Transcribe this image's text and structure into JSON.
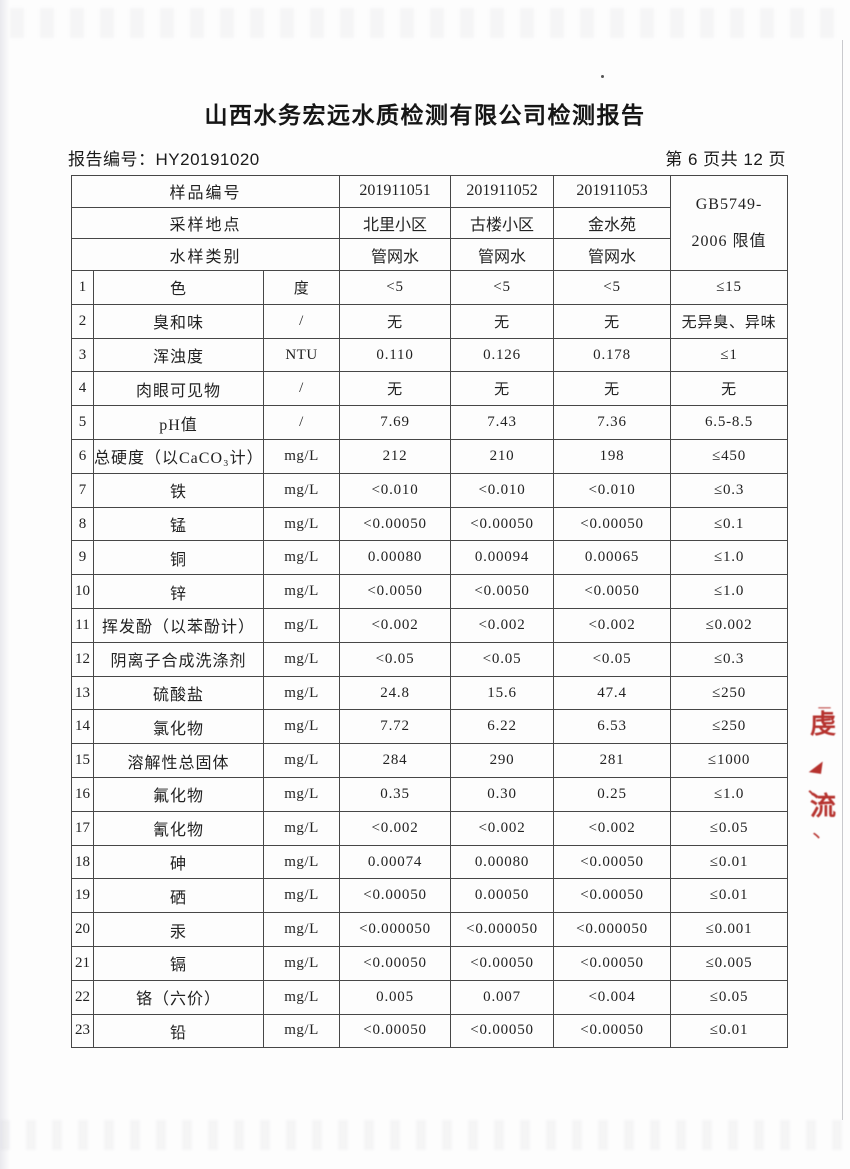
{
  "page": {
    "title": "山西水务宏远水质检测有限公司检测报告",
    "report_no_label": "报告编号：",
    "report_no": "HY20191020",
    "page_info": "第 6 页共 12 页"
  },
  "table": {
    "header": {
      "sample_no_label": "样品编号",
      "location_label": "采样地点",
      "water_type_label": "水样类别",
      "sample_ids": [
        "201911051",
        "201911052",
        "201911053"
      ],
      "locations": [
        "北里小区",
        "古楼小区",
        "金水苑"
      ],
      "water_types": [
        "管网水",
        "管网水",
        "管网水"
      ],
      "limit_line1": "GB5749-",
      "limit_line2": "2006 限值"
    },
    "rows": [
      {
        "no": "1",
        "name": "色",
        "unit": "度",
        "v1": "<5",
        "v2": "<5",
        "v3": "<5",
        "limit": "≤15"
      },
      {
        "no": "2",
        "name": "臭和味",
        "unit": "/",
        "v1": "无",
        "v2": "无",
        "v3": "无",
        "limit": "无异臭、异味"
      },
      {
        "no": "3",
        "name": "浑浊度",
        "unit": "NTU",
        "v1": "0.110",
        "v2": "0.126",
        "v3": "0.178",
        "limit": "≤1"
      },
      {
        "no": "4",
        "name": "肉眼可见物",
        "unit": "/",
        "v1": "无",
        "v2": "无",
        "v3": "无",
        "limit": "无"
      },
      {
        "no": "5",
        "name": "pH值",
        "unit": "/",
        "v1": "7.69",
        "v2": "7.43",
        "v3": "7.36",
        "limit": "6.5-8.5"
      },
      {
        "no": "6",
        "name": "总硬度（以CaCO₃计）",
        "unit": "mg/L",
        "v1": "212",
        "v2": "210",
        "v3": "198",
        "limit": "≤450"
      },
      {
        "no": "7",
        "name": "铁",
        "unit": "mg/L",
        "v1": "<0.010",
        "v2": "<0.010",
        "v3": "<0.010",
        "limit": "≤0.3"
      },
      {
        "no": "8",
        "name": "锰",
        "unit": "mg/L",
        "v1": "<0.00050",
        "v2": "<0.00050",
        "v3": "<0.00050",
        "limit": "≤0.1"
      },
      {
        "no": "9",
        "name": "铜",
        "unit": "mg/L",
        "v1": "0.00080",
        "v2": "0.00094",
        "v3": "0.00065",
        "limit": "≤1.0"
      },
      {
        "no": "10",
        "name": "锌",
        "unit": "mg/L",
        "v1": "<0.0050",
        "v2": "<0.0050",
        "v3": "<0.0050",
        "limit": "≤1.0"
      },
      {
        "no": "11",
        "name": "挥发酚（以苯酚计）",
        "unit": "mg/L",
        "v1": "<0.002",
        "v2": "<0.002",
        "v3": "<0.002",
        "limit": "≤0.002"
      },
      {
        "no": "12",
        "name": "阴离子合成洗涤剂",
        "unit": "mg/L",
        "v1": "<0.05",
        "v2": "<0.05",
        "v3": "<0.05",
        "limit": "≤0.3"
      },
      {
        "no": "13",
        "name": "硫酸盐",
        "unit": "mg/L",
        "v1": "24.8",
        "v2": "15.6",
        "v3": "47.4",
        "limit": "≤250"
      },
      {
        "no": "14",
        "name": "氯化物",
        "unit": "mg/L",
        "v1": "7.72",
        "v2": "6.22",
        "v3": "6.53",
        "limit": "≤250"
      },
      {
        "no": "15",
        "name": "溶解性总固体",
        "unit": "mg/L",
        "v1": "284",
        "v2": "290",
        "v3": "281",
        "limit": "≤1000"
      },
      {
        "no": "16",
        "name": "氟化物",
        "unit": "mg/L",
        "v1": "0.35",
        "v2": "0.30",
        "v3": "0.25",
        "limit": "≤1.0"
      },
      {
        "no": "17",
        "name": "氰化物",
        "unit": "mg/L",
        "v1": "<0.002",
        "v2": "<0.002",
        "v3": "<0.002",
        "limit": "≤0.05"
      },
      {
        "no": "18",
        "name": "砷",
        "unit": "mg/L",
        "v1": "0.00074",
        "v2": "0.00080",
        "v3": "<0.00050",
        "limit": "≤0.01"
      },
      {
        "no": "19",
        "name": "硒",
        "unit": "mg/L",
        "v1": "<0.00050",
        "v2": "0.00050",
        "v3": "<0.00050",
        "limit": "≤0.01"
      },
      {
        "no": "20",
        "name": "汞",
        "unit": "mg/L",
        "v1": "<0.000050",
        "v2": "<0.000050",
        "v3": "<0.000050",
        "limit": "≤0.001"
      },
      {
        "no": "21",
        "name": "镉",
        "unit": "mg/L",
        "v1": "<0.00050",
        "v2": "<0.00050",
        "v3": "<0.00050",
        "limit": "≤0.005"
      },
      {
        "no": "22",
        "name": "铬（六价）",
        "unit": "mg/L",
        "v1": "0.005",
        "v2": "0.007",
        "v3": "<0.004",
        "limit": "≤0.05"
      },
      {
        "no": "23",
        "name": "铅",
        "unit": "mg/L",
        "v1": "<0.00050",
        "v2": "<0.00050",
        "v3": "<0.00050",
        "limit": "≤0.01"
      }
    ]
  },
  "stamp": {
    "color": "#b0211d",
    "glyphs": [
      "一",
      "虔",
      "◢",
      "、",
      "流",
      "丶"
    ]
  }
}
